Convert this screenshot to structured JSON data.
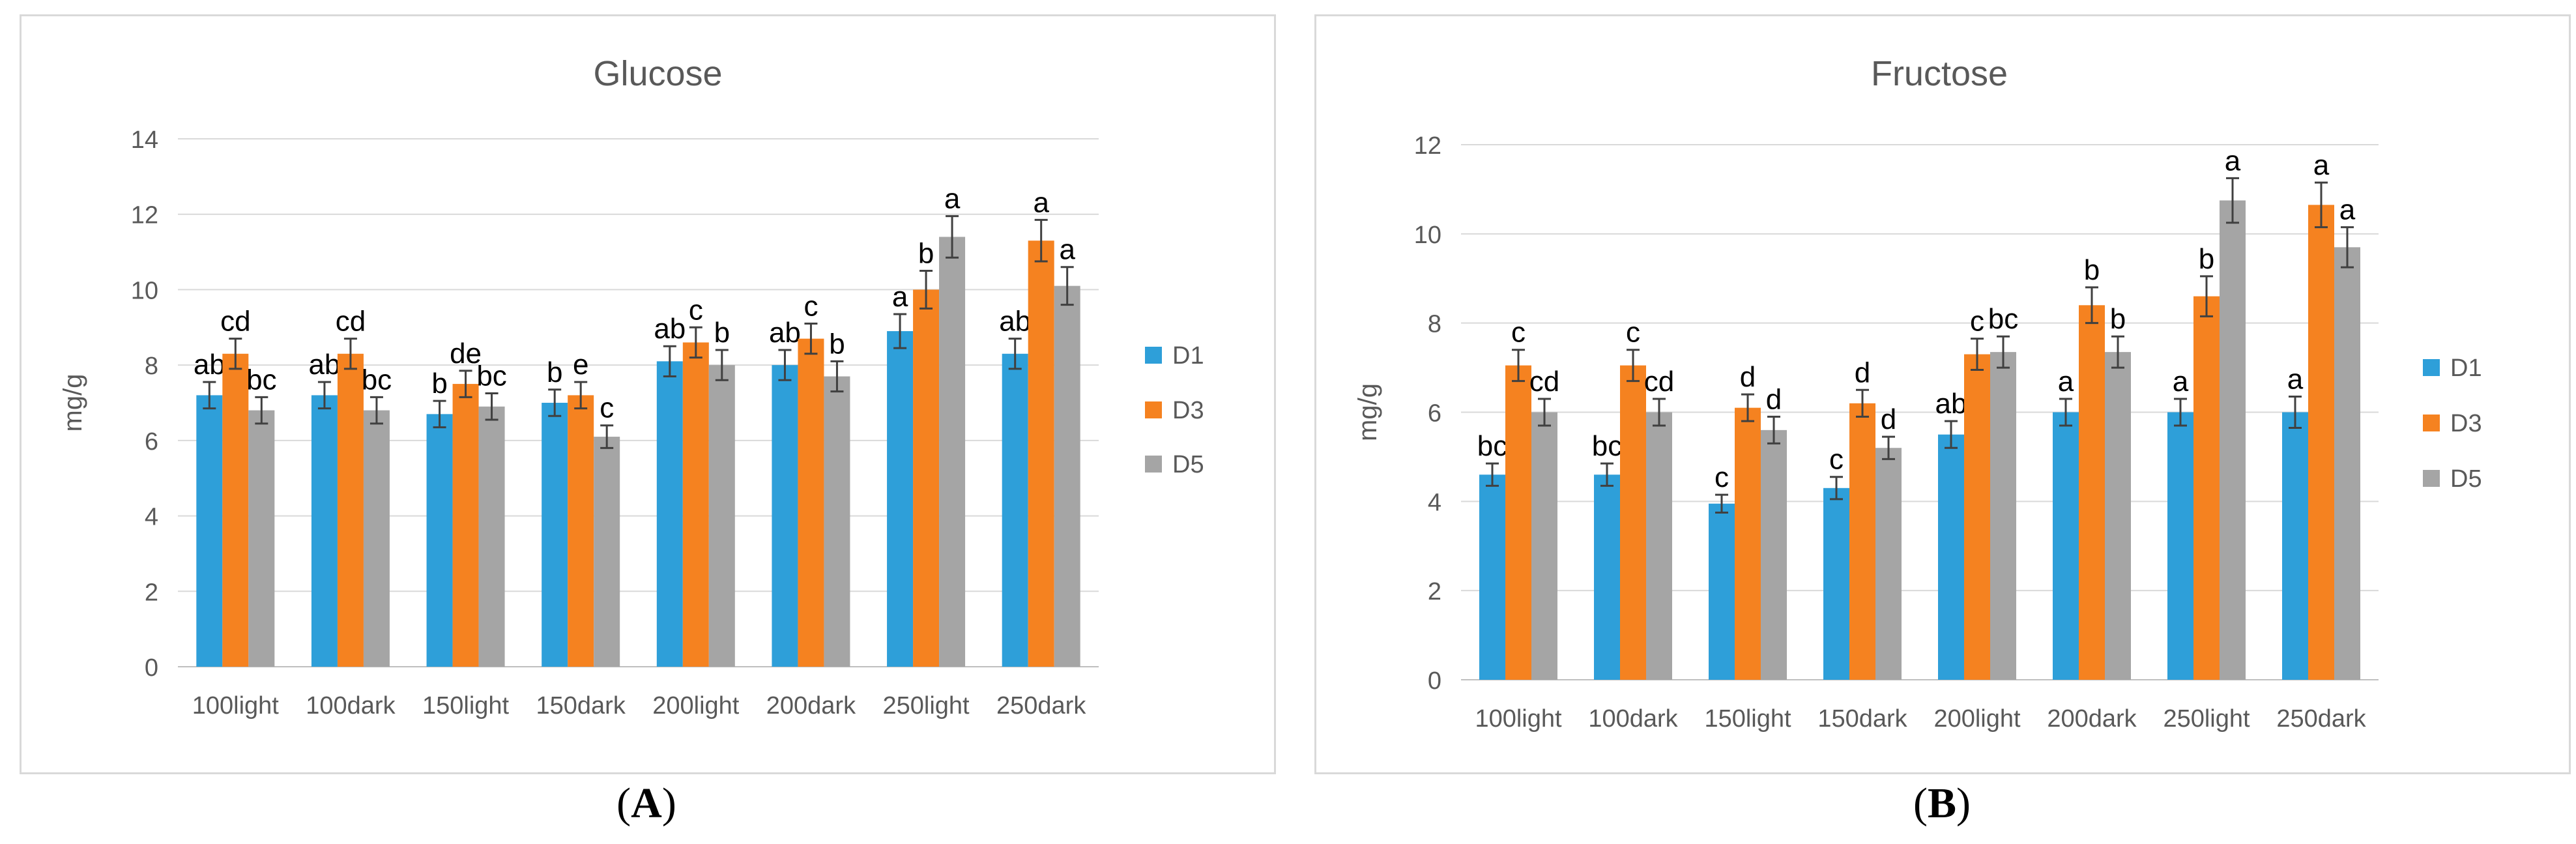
{
  "captions": {
    "a_open": "(",
    "a_letter": "A",
    "a_close": ")",
    "b_open": "(",
    "b_letter": "B",
    "b_close": ")"
  },
  "colors": {
    "D1": "#2e9fd9",
    "D3": "#f58220",
    "D5": "#a5a5a5",
    "grid": "#d9d9d9",
    "axis_text": "#595959",
    "title": "#595959",
    "label": "#000000",
    "error": "#404040"
  },
  "chart_data": [
    {
      "type": "bar",
      "title": "Glucose",
      "ylabel": "mg/g",
      "xlabel": "",
      "ylim": [
        0,
        14
      ],
      "yticks": [
        "0",
        "2",
        "4",
        "6",
        "8",
        "10",
        "12",
        "14"
      ],
      "grid": true,
      "legend": "right",
      "categories": [
        "100light",
        "100dark",
        "150light",
        "150dark",
        "200light",
        "200dark",
        "250light",
        "250dark"
      ],
      "series": [
        {
          "name": "D1",
          "values": [
            7.2,
            7.2,
            6.7,
            7.0,
            8.1,
            8.0,
            8.9,
            8.3
          ],
          "errors": [
            0.35,
            0.35,
            0.35,
            0.35,
            0.4,
            0.4,
            0.45,
            0.4
          ],
          "labels": [
            "ab",
            "ab",
            "b",
            "b",
            "ab",
            "ab",
            "a",
            "ab"
          ]
        },
        {
          "name": "D3",
          "values": [
            8.3,
            8.3,
            7.5,
            7.2,
            8.6,
            8.7,
            10.0,
            11.3
          ],
          "errors": [
            0.4,
            0.4,
            0.35,
            0.35,
            0.4,
            0.4,
            0.5,
            0.55
          ],
          "labels": [
            "cd",
            "cd",
            "de",
            "e",
            "c",
            "c",
            "b",
            "a"
          ]
        },
        {
          "name": "D5",
          "values": [
            6.8,
            6.8,
            6.9,
            6.1,
            8.0,
            7.7,
            11.4,
            10.1
          ],
          "errors": [
            0.35,
            0.35,
            0.35,
            0.3,
            0.4,
            0.4,
            0.55,
            0.5
          ],
          "labels": [
            "bc",
            "bc",
            "bc",
            "c",
            "b",
            "b",
            "a",
            "a"
          ]
        }
      ]
    },
    {
      "type": "bar",
      "title": "Fructose",
      "ylabel": "mg/g",
      "xlabel": "",
      "ylim": [
        0,
        12
      ],
      "yticks": [
        "0",
        "2",
        "4",
        "6",
        "8",
        "10",
        "12"
      ],
      "grid": true,
      "legend": "right",
      "categories": [
        "100light",
        "100dark",
        "150light",
        "150dark",
        "200light",
        "200dark",
        "250light",
        "250dark"
      ],
      "series": [
        {
          "name": "D1",
          "values": [
            4.6,
            4.6,
            3.95,
            4.3,
            5.5,
            6.0,
            6.0,
            6.0
          ],
          "errors": [
            0.25,
            0.25,
            0.2,
            0.25,
            0.3,
            0.3,
            0.3,
            0.35
          ],
          "labels": [
            "bc",
            "bc",
            "c",
            "c",
            "ab",
            "a",
            "a",
            "a"
          ]
        },
        {
          "name": "D3",
          "values": [
            7.05,
            7.05,
            6.1,
            6.2,
            7.3,
            8.4,
            8.6,
            10.65
          ],
          "errors": [
            0.35,
            0.35,
            0.3,
            0.3,
            0.35,
            0.4,
            0.45,
            0.5
          ],
          "labels": [
            "c",
            "c",
            "d",
            "d",
            "c",
            "b",
            "b",
            "a"
          ]
        },
        {
          "name": "D5",
          "values": [
            6.0,
            6.0,
            5.6,
            5.2,
            7.35,
            7.35,
            10.75,
            9.7
          ],
          "errors": [
            0.3,
            0.3,
            0.3,
            0.25,
            0.35,
            0.35,
            0.5,
            0.45
          ],
          "labels": [
            "cd",
            "cd",
            "d",
            "d",
            "bc",
            "b",
            "a",
            "a"
          ]
        }
      ]
    }
  ]
}
